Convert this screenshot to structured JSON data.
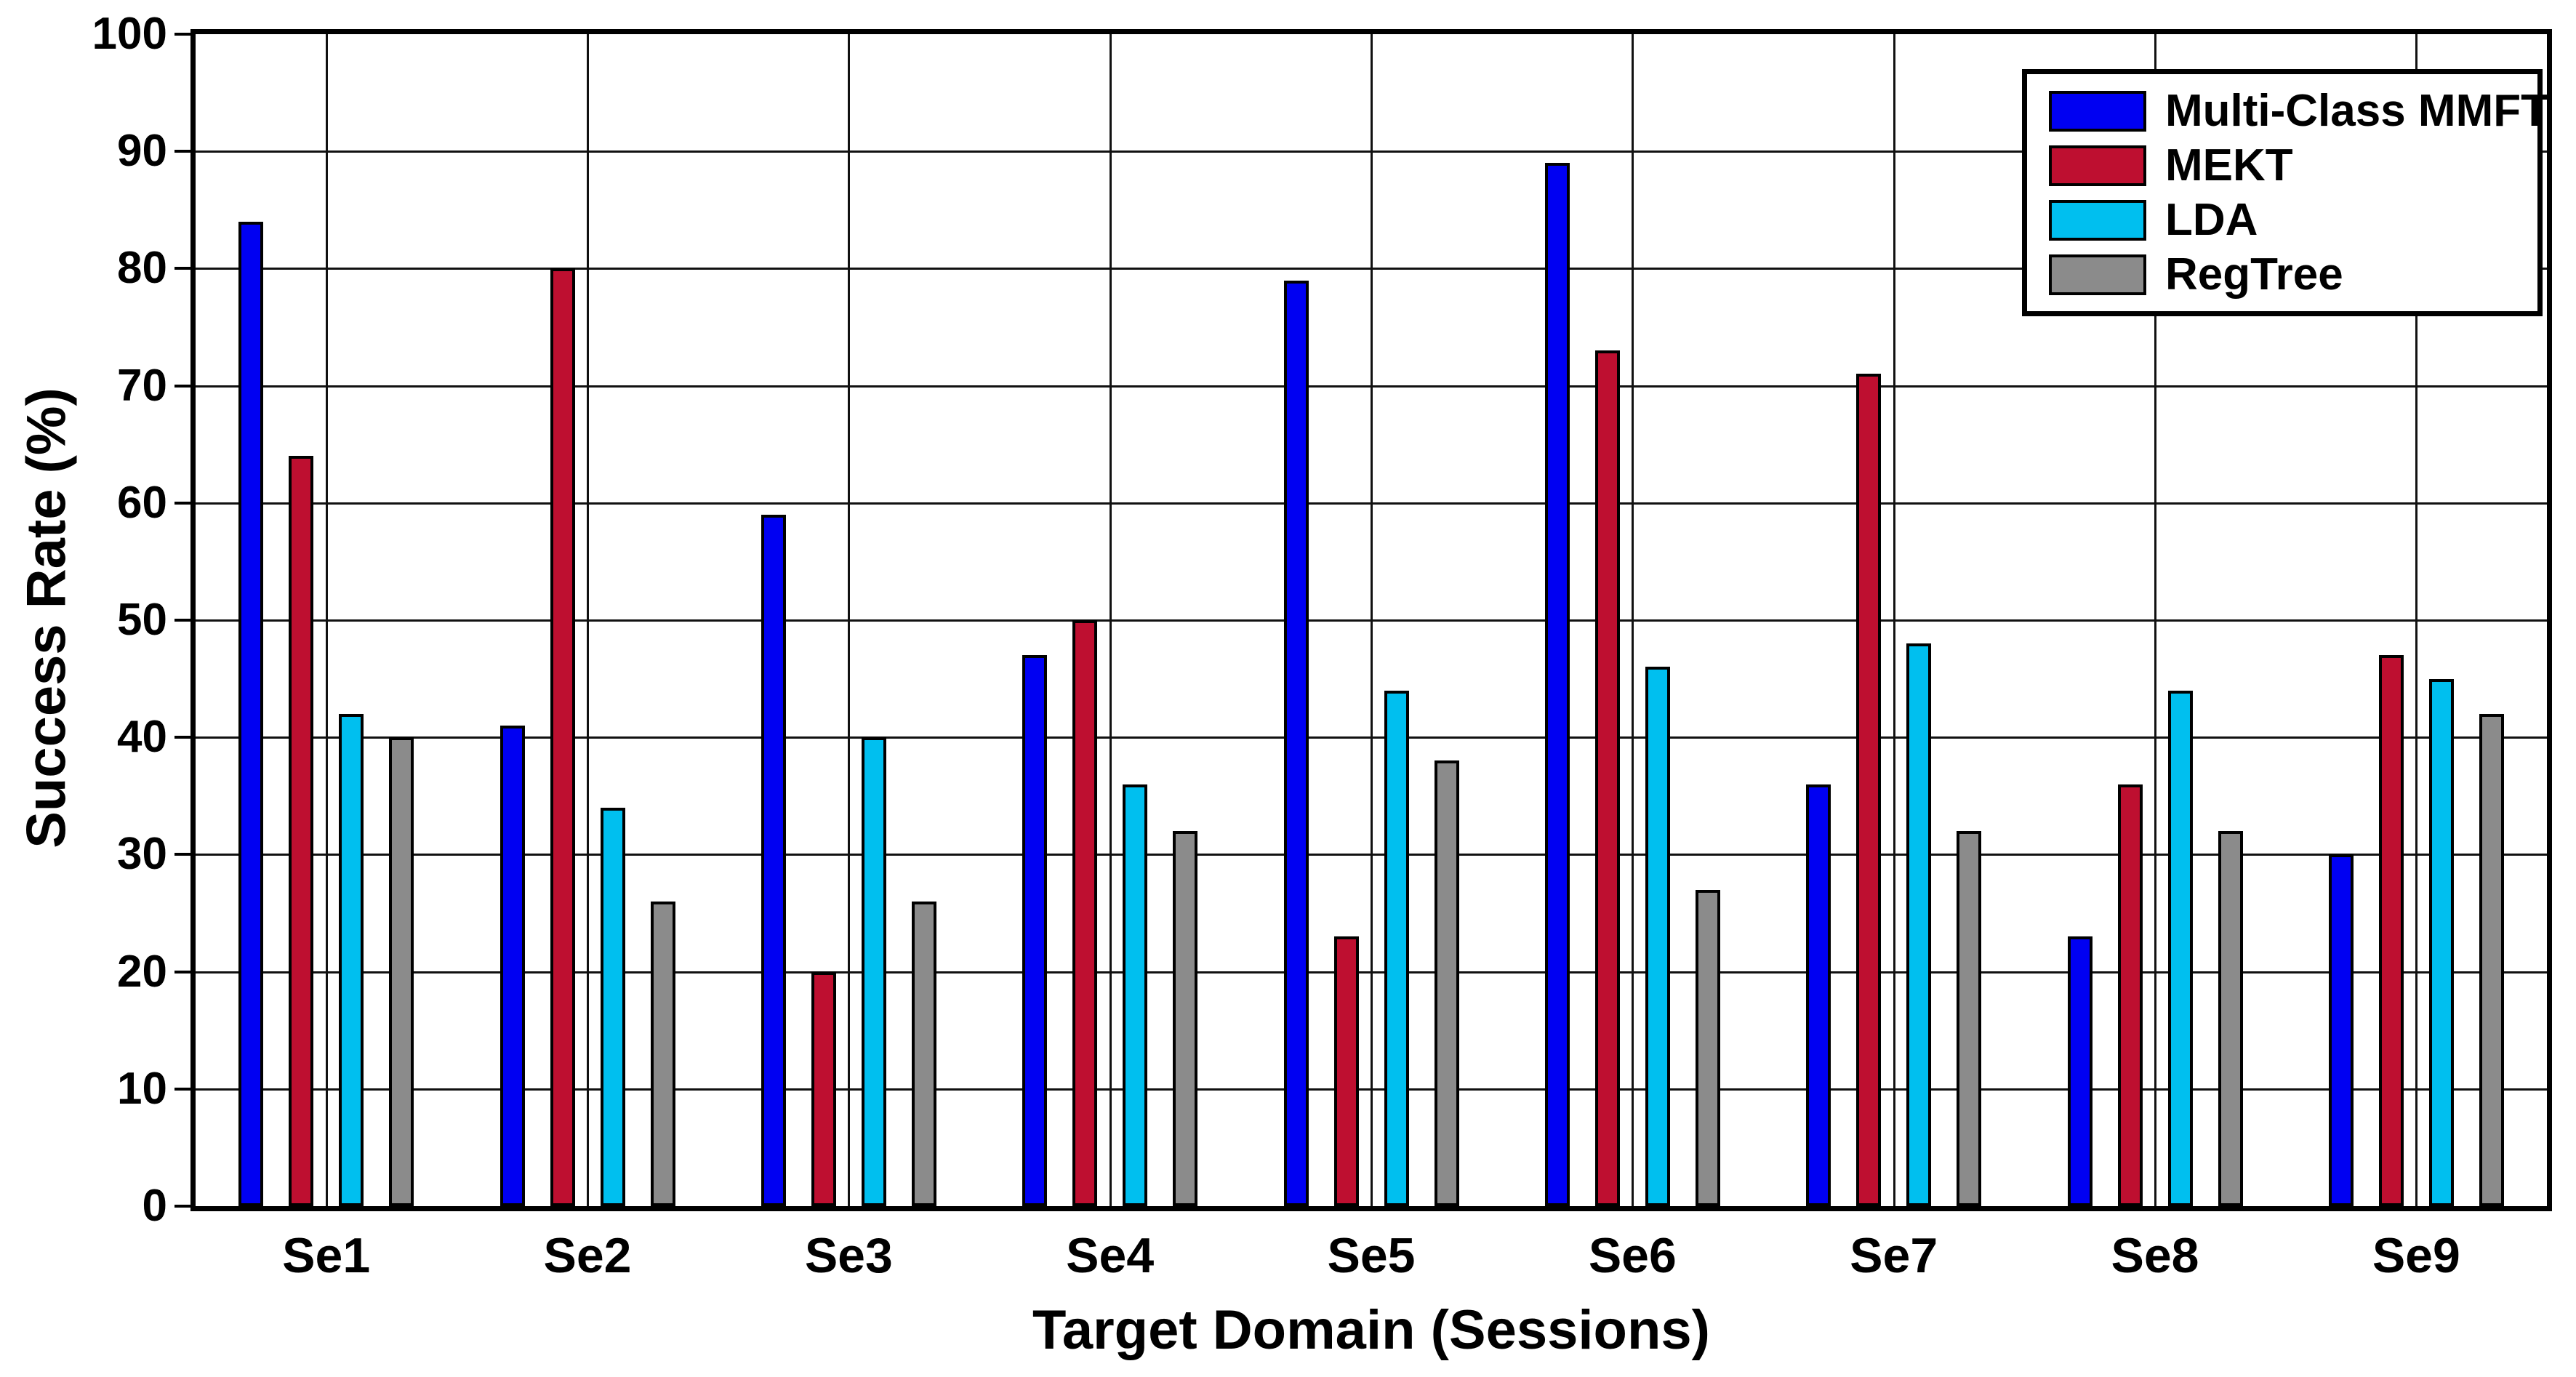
{
  "figure": {
    "background": "#ffffff",
    "axis_color": "#000000",
    "grid_color": "#111111"
  },
  "chart_data": {
    "type": "bar",
    "title": "",
    "xlabel": "Target Domain (Sessions)",
    "ylabel": "Success Rate (%)",
    "categories": [
      "Se1",
      "Se2",
      "Se3",
      "Se4",
      "Se5",
      "Se6",
      "Se7",
      "Se8",
      "Se9"
    ],
    "series": [
      {
        "name": "Multi-Class MMFT",
        "color": "#0000f2",
        "values": [
          84,
          41,
          59,
          47,
          79,
          89,
          36,
          23,
          30
        ]
      },
      {
        "name": "MEKT",
        "color": "#be0f30",
        "values": [
          64,
          80,
          20,
          50,
          23,
          73,
          71,
          36,
          47
        ]
      },
      {
        "name": "LDA",
        "color": "#00bfef",
        "values": [
          42,
          34,
          40,
          36,
          44,
          46,
          48,
          44,
          45
        ]
      },
      {
        "name": "RegTree",
        "color": "#8b8b8b",
        "values": [
          40,
          26,
          26,
          32,
          38,
          27,
          32,
          32,
          42
        ]
      }
    ],
    "ylim": [
      0,
      100
    ],
    "ytick_step": 10,
    "yticks": [
      0,
      10,
      20,
      30,
      40,
      50,
      60,
      70,
      80,
      90,
      100
    ],
    "grid": true,
    "legend_position": "top-right",
    "bar_edge_color": "#000000"
  }
}
